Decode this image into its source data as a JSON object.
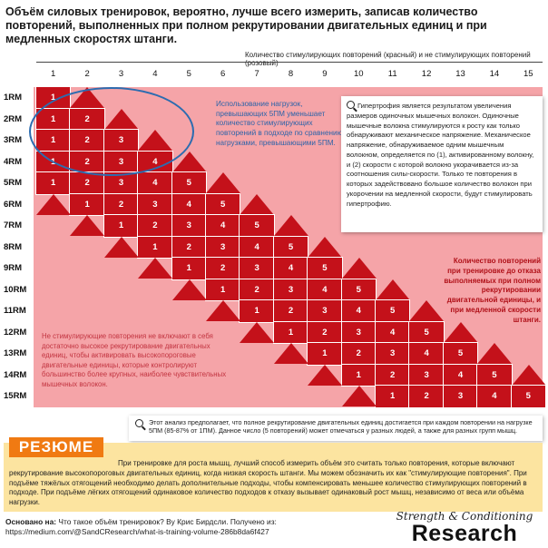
{
  "title": "Объём силовых тренировок, вероятно, лучше всего измерить, записав количество повторений, выполненных при полном рекрутировании двигательных единиц и при медленных скоростях штанги.",
  "axis_caption": "Количество стимулирующих повторений (красный) и не стимулирующих повторений (розовый)",
  "columns": [
    "1",
    "2",
    "3",
    "4",
    "5",
    "6",
    "7",
    "8",
    "9",
    "10",
    "11",
    "12",
    "13",
    "14",
    "15"
  ],
  "rows": [
    "1RM",
    "2RM",
    "3RM",
    "4RM",
    "5RM",
    "6RM",
    "7RM",
    "8RM",
    "9RM",
    "10RM",
    "11RM",
    "12RM",
    "13RM",
    "14RM",
    "15RM"
  ],
  "note_blue": "Использование нагрузок, превышающих 5ПМ уменьшает количество стимулирующих повторений в подходе по сравнению с нагрузками, превышающими 5ПМ.",
  "hypertrophy_text": "Гипертрофия является результатом увеличения размеров одиночных мышечных волокон. Одиночные мышечные волокна стимулируются к росту как только обнаруживают механическое напряжение. Механическое напряжение, обнаруживаемое одним мышечным волокном, определяется по (1), активированному волокну, и (2) скорости с которой волокно укорачивается из-за соотношения силы-скорости. Только те повторения в которых задействовано большое количество волокон при укорочении на медленной скорости, будут стимулировать гипертрофию.",
  "red_note": "Количество повторений при тренировке до отказа выполняемых при полном рекрутировании двигательной единицы, и при медленной скорости штанги.",
  "pink_note": "Не стимулирующие повторения не включают в себя достаточно высокое рекрутирование двигательных единиц, чтобы активировать высокопороговые двигательные единицы, которые контролируют большинство более крупных, наиболее чувствительных мышечных волокон.",
  "assumption": "Этот анализ предполагает, что полное рекрутирование двигательных единиц достигается при каждом повторении на нагрузке 5ПМ (85-87% от 1ПМ). Данное число (5 повторений) может отмечаться у разных людей, а также для разных групп мышц.",
  "summary_label": "РЕЗЮМЕ",
  "summary_text": "При тренировке для роста мышц, лучший способ измерить объём это считать только повторения, которые включают рекрутирование высокопороговых двигательных единиц, когда низкая скорость штанги. Мы можем обозначить их как \"стимулирующие повторения\". При подъёме тяжёлых отягощений необходимо делать дополнительные подходы, чтобы компенсировать меньшее количество стимулирующих повторений в подходе. При подъёме лёгких отягощений одинаковое количество подходов к отказу вызывает одинаковый рост мышц, независимо от веса или объёма нагрузки.",
  "source_label": "Основано на:",
  "source_text": "Что такое объём тренировок? By Крис Бирдсли. Получено из:",
  "source_url": "https://medium.com/@SandCResearch/what-is-training-volume-286b8da6f427",
  "logo_line1": "Strength & Conditioning",
  "logo_line2": "Research",
  "colors": {
    "red": "#c4111a",
    "pink": "#f5a4a8",
    "orange": "#f07a12",
    "summary_bg": "#fce4a0",
    "blue": "#2c6cb0"
  },
  "icons": [
    "search-icon"
  ]
}
